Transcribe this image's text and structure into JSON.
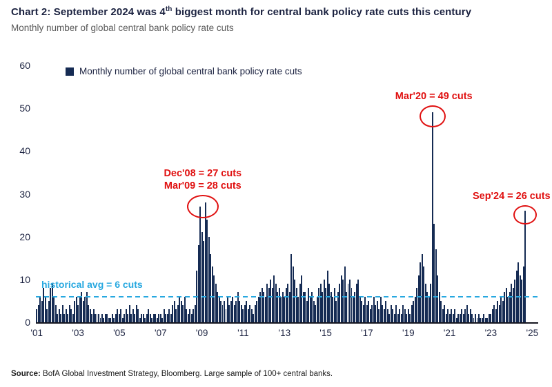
{
  "header": {
    "title_prefix": "Chart 2: September 2024 was 4",
    "title_sup": "th",
    "title_suffix": " biggest month for central bank policy rate cuts this century",
    "subtitle": "Monthly number of global central bank policy rate cuts"
  },
  "legend": {
    "label": "Monthly number of global central bank policy rate cuts"
  },
  "source": {
    "label": "Source:",
    "text": " BofA Global Investment Strategy, Bloomberg. Large sample of 100+ central banks."
  },
  "colors": {
    "bar": "#152b53",
    "accent_red": "#e01010",
    "accent_cyan": "#27a8e0",
    "text_dark": "#1b2240",
    "subtitle_gray": "#595959"
  },
  "chart_data": {
    "type": "bar",
    "title": "Monthly number of global central bank policy rate cuts",
    "start_month": "2001-01",
    "end_month": "2024-09",
    "ylim": [
      0,
      60
    ],
    "y_ticks": [
      0,
      10,
      20,
      30,
      40,
      50,
      60
    ],
    "total_slots": 292,
    "x_ticks": [
      {
        "label": "'01",
        "month_index": 0
      },
      {
        "label": "'03",
        "month_index": 24
      },
      {
        "label": "'05",
        "month_index": 48
      },
      {
        "label": "'07",
        "month_index": 72
      },
      {
        "label": "'09",
        "month_index": 96
      },
      {
        "label": "'11",
        "month_index": 120
      },
      {
        "label": "'13",
        "month_index": 144
      },
      {
        "label": "'15",
        "month_index": 168
      },
      {
        "label": "'17",
        "month_index": 192
      },
      {
        "label": "'19",
        "month_index": 216
      },
      {
        "label": "'21",
        "month_index": 240
      },
      {
        "label": "'23",
        "month_index": 264
      },
      {
        "label": "'25",
        "month_index": 288
      }
    ],
    "values": [
      3,
      4,
      6,
      5,
      8,
      6,
      3,
      5,
      8,
      9,
      6,
      4,
      2,
      3,
      2,
      4,
      2,
      3,
      2,
      4,
      3,
      2,
      5,
      6,
      4,
      6,
      7,
      5,
      6,
      7,
      4,
      3,
      2,
      3,
      2,
      2,
      2,
      1,
      2,
      1,
      2,
      2,
      1,
      1,
      2,
      1,
      2,
      3,
      2,
      3,
      1,
      2,
      3,
      2,
      4,
      2,
      3,
      2,
      4,
      3,
      1,
      2,
      2,
      1,
      2,
      3,
      2,
      1,
      2,
      2,
      1,
      2,
      2,
      1,
      3,
      2,
      2,
      3,
      2,
      4,
      5,
      3,
      4,
      6,
      5,
      4,
      6,
      3,
      2,
      3,
      2,
      3,
      4,
      12,
      18,
      27,
      21,
      19,
      28,
      24,
      20,
      16,
      13,
      11,
      9,
      7,
      6,
      5,
      4,
      5,
      3,
      6,
      4,
      5,
      6,
      4,
      5,
      7,
      5,
      4,
      3,
      4,
      5,
      3,
      4,
      3,
      2,
      4,
      5,
      6,
      7,
      8,
      7,
      6,
      9,
      8,
      10,
      8,
      11,
      9,
      7,
      8,
      6,
      7,
      6,
      8,
      9,
      7,
      16,
      13,
      10,
      8,
      6,
      9,
      11,
      7,
      7,
      5,
      8,
      6,
      7,
      5,
      4,
      6,
      8,
      9,
      7,
      10,
      8,
      12,
      9,
      7,
      6,
      8,
      5,
      7,
      9,
      11,
      10,
      13,
      7,
      9,
      10,
      8,
      6,
      7,
      9,
      10,
      6,
      5,
      4,
      6,
      4,
      5,
      3,
      4,
      6,
      4,
      5,
      3,
      6,
      4,
      3,
      5,
      3,
      2,
      4,
      3,
      2,
      4,
      2,
      3,
      2,
      4,
      3,
      2,
      3,
      2,
      4,
      5,
      6,
      8,
      11,
      14,
      16,
      13,
      9,
      7,
      6,
      9,
      49,
      23,
      17,
      11,
      7,
      5,
      3,
      4,
      2,
      3,
      2,
      3,
      2,
      3,
      1,
      2,
      2,
      3,
      2,
      3,
      4,
      2,
      3,
      2,
      1,
      2,
      1,
      2,
      1,
      1,
      2,
      1,
      1,
      2,
      2,
      3,
      4,
      3,
      5,
      4,
      6,
      5,
      7,
      8,
      6,
      7,
      9,
      8,
      10,
      12,
      14,
      11,
      10,
      13,
      26
    ],
    "avg_line": {
      "value": 6,
      "label": "historical avg = 6 cuts"
    },
    "annotations": [
      {
        "lines": [
          "Dec'08 = 27 cuts",
          "Mar'09 = 28 cuts"
        ],
        "month_index": 96.5,
        "value": 28,
        "circle_w": 46,
        "circle_h": 34,
        "dx": 0
      },
      {
        "lines": [
          "Mar'20 = 49 cuts"
        ],
        "month_index": 230,
        "value": 49,
        "circle_w": 38,
        "circle_h": 32,
        "dx": 2
      },
      {
        "lines": [
          "Sep'24 = 26 cuts"
        ],
        "month_index": 284,
        "value": 26,
        "circle_w": 34,
        "circle_h": 28,
        "dx": -20
      }
    ],
    "legend_position": "top-left",
    "grid": false
  }
}
